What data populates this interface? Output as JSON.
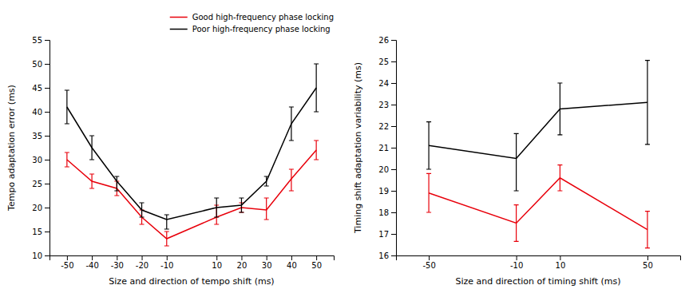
{
  "chart_data": [
    {
      "type": "line",
      "xlabel": "Size and direction of tempo shift (ms)",
      "ylabel": "Tempo adaptation error (ms)",
      "x": [
        -50,
        -40,
        -30,
        -20,
        -10,
        10,
        20,
        30,
        40,
        50
      ],
      "series": [
        {
          "name": "Good high-frequency phase locking",
          "color": "#e8000b",
          "values": [
            30,
            25.5,
            24,
            18,
            13.5,
            18,
            20,
            19.5,
            26,
            32
          ],
          "error_lo": [
            1.5,
            1.5,
            1.5,
            1.5,
            1.5,
            1.5,
            1.0,
            2.0,
            2.5,
            2.0
          ],
          "error_hi": [
            1.5,
            1.5,
            1.5,
            1.5,
            1.5,
            2.5,
            1.0,
            2.5,
            2.0,
            2.0
          ]
        },
        {
          "name": "Poor high-frequency phase locking",
          "color": "#000000",
          "values": [
            41,
            32.5,
            25.5,
            19.5,
            17.5,
            20,
            20.5,
            25.5,
            37.5,
            45
          ],
          "error_lo": [
            3.5,
            2.5,
            2.0,
            1.5,
            2.0,
            2.0,
            1.5,
            1.0,
            3.5,
            5.0
          ],
          "error_hi": [
            3.5,
            2.5,
            1.0,
            1.5,
            1.0,
            2.0,
            1.5,
            1.0,
            3.5,
            5.0
          ]
        }
      ],
      "xlim": [
        -57,
        57
      ],
      "ylim": [
        10,
        55
      ],
      "xticks": [
        -50,
        -40,
        -30,
        -20,
        -10,
        10,
        20,
        30,
        40,
        50
      ],
      "yticks": [
        10,
        15,
        20,
        25,
        30,
        35,
        40,
        45,
        50,
        55
      ],
      "legend": "upper right"
    },
    {
      "type": "line",
      "xlabel": "Size and direction of timing shift (ms)",
      "ylabel": "Timing shift adaptation variability (ms)",
      "x": [
        -50,
        -10,
        10,
        50
      ],
      "series": [
        {
          "color": "#e8000b",
          "values": [
            18.9,
            17.5,
            19.6,
            17.2
          ],
          "error_lo": [
            0.9,
            0.85,
            0.6,
            0.85
          ],
          "error_hi": [
            0.9,
            0.85,
            0.6,
            0.85
          ]
        },
        {
          "color": "#000000",
          "values": [
            21.1,
            20.5,
            22.8,
            23.1
          ],
          "error_lo": [
            1.1,
            1.5,
            1.2,
            1.95
          ],
          "error_hi": [
            1.1,
            1.15,
            1.2,
            1.95
          ]
        }
      ],
      "xlim": [
        -65,
        65
      ],
      "ylim": [
        16,
        26
      ],
      "xticks": [
        -50,
        -10,
        10,
        50
      ],
      "yticks": [
        16,
        17,
        18,
        19,
        20,
        21,
        22,
        23,
        24,
        25,
        26
      ]
    }
  ]
}
